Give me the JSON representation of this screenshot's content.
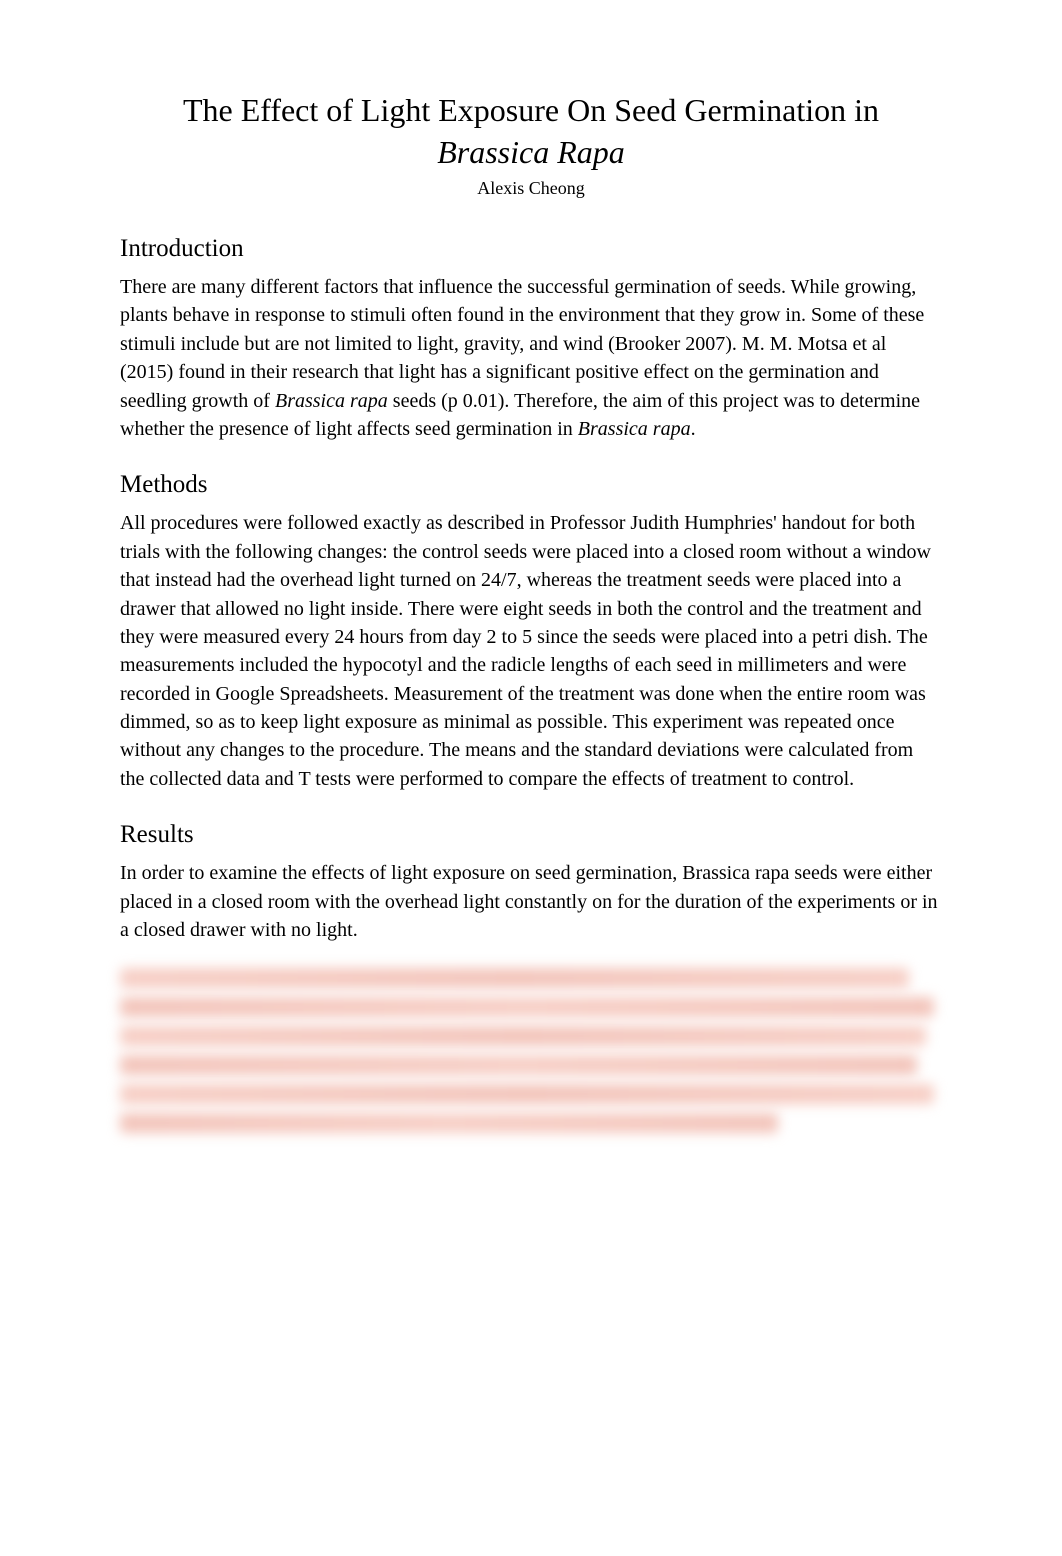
{
  "title_line1": "The Effect of Light Exposure On Seed Germination in",
  "title_line2": "Brassica Rapa",
  "author": "Alexis Cheong",
  "sections": {
    "introduction": {
      "heading": "Introduction",
      "body_pre": "There are many different factors that influence the successful germination of seeds. While growing, plants behave in response to stimuli often found in the environment that they grow in. Some of these stimuli include but are not limited to light, gravity, and wind (Brooker 2007). M. M. Motsa et al (2015) found in their research that light has a significant positive effect on the germination and seedling growth of ",
      "body_ital1": "Brassica rapa",
      "body_mid": " seeds (p 0.01). Therefore, the aim of this project was to determine whether the presence of light affects seed germination in ",
      "body_ital2": "Brassica rapa",
      "body_post": "."
    },
    "methods": {
      "heading": "Methods",
      "body": "All procedures were followed exactly as described in Professor Judith Humphries' handout for both trials with the following changes: the control seeds were placed into a closed room without a window that instead had the overhead light turned on 24/7, whereas the treatment seeds were placed into a drawer that allowed no light inside. There were eight seeds in both the control and the treatment and they were measured every 24 hours from day 2 to 5 since the seeds were placed into a petri dish. The measurements included the hypocotyl and the radicle lengths of each seed in millimeters and were recorded in Google Spreadsheets. Measurement of the treatment was done when the entire room was dimmed, so as to keep light exposure as minimal as possible. This experiment was repeated once without any changes to the procedure. The means and the standard deviations were calculated from the collected data and T tests were performed to compare the effects of treatment to control."
    },
    "results": {
      "heading": "Results",
      "body": "In order to examine the effects of light exposure on seed germination, Brassica rapa seeds were either placed in a closed room with the overhead light constantly on for the duration of the experiments or in a closed drawer with no light."
    }
  },
  "style": {
    "page_bg": "#ffffff",
    "text_color": "#000000",
    "title_fontsize": 32,
    "author_fontsize": 18,
    "heading_fontsize": 25,
    "body_fontsize": 20,
    "blur_color": "#f7cfc6",
    "font_family": "Times New Roman"
  }
}
